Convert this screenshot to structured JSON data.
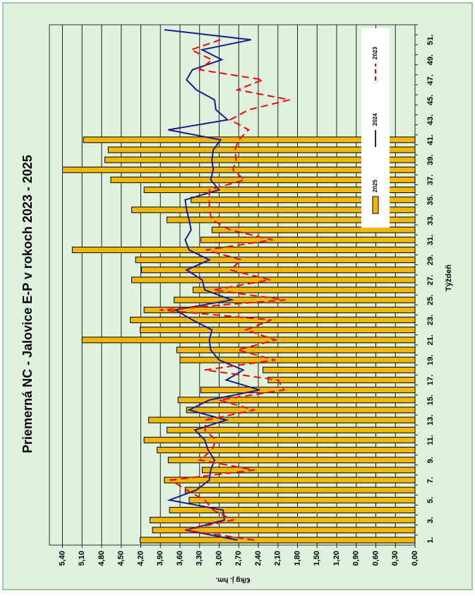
{
  "chart_data": {
    "type": "bar-line",
    "title": "Priemerná NC - Jalovice E-P v rokoch 2023 - 2025",
    "x_label": "Týždeň",
    "y_label": "€/kg j. hm.",
    "categories": [
      "1.",
      null,
      "3.",
      null,
      "5.",
      null,
      "7.",
      null,
      "9.",
      null,
      "11.",
      null,
      "13.",
      null,
      "15.",
      null,
      "17.",
      null,
      "19.",
      null,
      "21.",
      null,
      "23.",
      null,
      "25.",
      null,
      "27.",
      null,
      "29.",
      null,
      "31.",
      null,
      "33.",
      null,
      "35.",
      null,
      "37.",
      null,
      "39.",
      null,
      "41.",
      null,
      "43.",
      null,
      "45.",
      null,
      "47.",
      null,
      "49.",
      null,
      "51.",
      null
    ],
    "series": [
      {
        "name": "2025",
        "kind": "bar",
        "color": "#f2b705",
        "values": [
          4.21,
          4.02,
          4.06,
          3.76,
          3.46,
          3.52,
          3.84,
          3.26,
          3.78,
          3.95,
          4.15,
          3.8,
          4.08,
          3.5,
          3.63,
          3.28,
          2.25,
          2.33,
          3.6,
          3.65,
          5.1,
          4.21,
          4.36,
          4.15,
          3.69,
          3.4,
          4.34,
          4.19,
          4.28,
          5.25,
          3.28,
          3.11,
          3.8,
          4.34,
          3.43,
          4.15,
          4.66,
          5.4,
          4.75,
          4.7,
          5.08,
          null,
          null,
          null,
          null,
          null,
          null,
          null,
          null,
          null,
          null,
          null
        ]
      },
      {
        "name": "2024",
        "kind": "line",
        "color": "#1c1c8a",
        "dash": false,
        "values": [
          2.72,
          3.52,
          2.92,
          2.94,
          3.76,
          3.35,
          3.15,
          3.13,
          3.07,
          3.17,
          3.22,
          3.37,
          2.89,
          3.46,
          3.15,
          2.38,
          2.89,
          2.63,
          3.0,
          3.13,
          3.15,
          3.11,
          3.41,
          3.67,
          2.81,
          3.22,
          3.26,
          3.5,
          3.15,
          3.46,
          3.52,
          3.43,
          3.46,
          3.5,
          3.52,
          3.0,
          3.13,
          3.09,
          3.11,
          3.09,
          2.98,
          3.78,
          2.87,
          3.05,
          3.07,
          3.35,
          3.5,
          3.41,
          2.96,
          3.26,
          2.51,
          3.84
        ]
      },
      {
        "name": "2023",
        "kind": "line",
        "color": "#ff0000",
        "dash": true,
        "values": [
          2.46,
          3.52,
          2.79,
          3.09,
          3.22,
          3.5,
          3.74,
          2.46,
          3.3,
          3.11,
          3.05,
          3.22,
          3.2,
          2.46,
          3.0,
          2.01,
          2.1,
          3.22,
          2.14,
          2.72,
          2.14,
          2.59,
          2.2,
          3.91,
          1.99,
          3.09,
          2.22,
          2.83,
          2.66,
          3.2,
          2.18,
          2.83,
          3.11,
          3.15,
          3.15,
          3.15,
          2.61,
          2.79,
          2.74,
          2.76,
          2.7,
          2.55,
          2.83,
          2.55,
          1.92,
          2.72,
          2.33,
          3.3,
          3.11,
          3.43,
          2.98,
          null
        ]
      }
    ],
    "ylim": [
      0,
      5.6
    ],
    "yticks": [
      {
        "value": 0,
        "label": "0,00"
      },
      {
        "value": 0.3,
        "label": "0,30"
      },
      {
        "value": 0.6,
        "label": "0,60"
      },
      {
        "value": 0.9,
        "label": "0,90"
      },
      {
        "value": 1.2,
        "label": "1,20"
      },
      {
        "value": 1.5,
        "label": "1,50"
      },
      {
        "value": 1.8,
        "label": "1,80"
      },
      {
        "value": 2.1,
        "label": "2,10"
      },
      {
        "value": 2.4,
        "label": "2,40"
      },
      {
        "value": 2.7,
        "label": "2,70"
      },
      {
        "value": 3,
        "label": "3,00"
      },
      {
        "value": 3.3,
        "label": "3,30"
      },
      {
        "value": 3.6,
        "label": "3,60"
      },
      {
        "value": 3.9,
        "label": "3,90"
      },
      {
        "value": 4.2,
        "label": "4,20"
      },
      {
        "value": 4.5,
        "label": "4,50"
      },
      {
        "value": 4.8,
        "label": "4,80"
      },
      {
        "value": 5.1,
        "label": "5,10"
      },
      {
        "value": 5.4,
        "label": "5,40"
      }
    ],
    "grid": true,
    "legend": "upper right",
    "rotation": -90
  }
}
